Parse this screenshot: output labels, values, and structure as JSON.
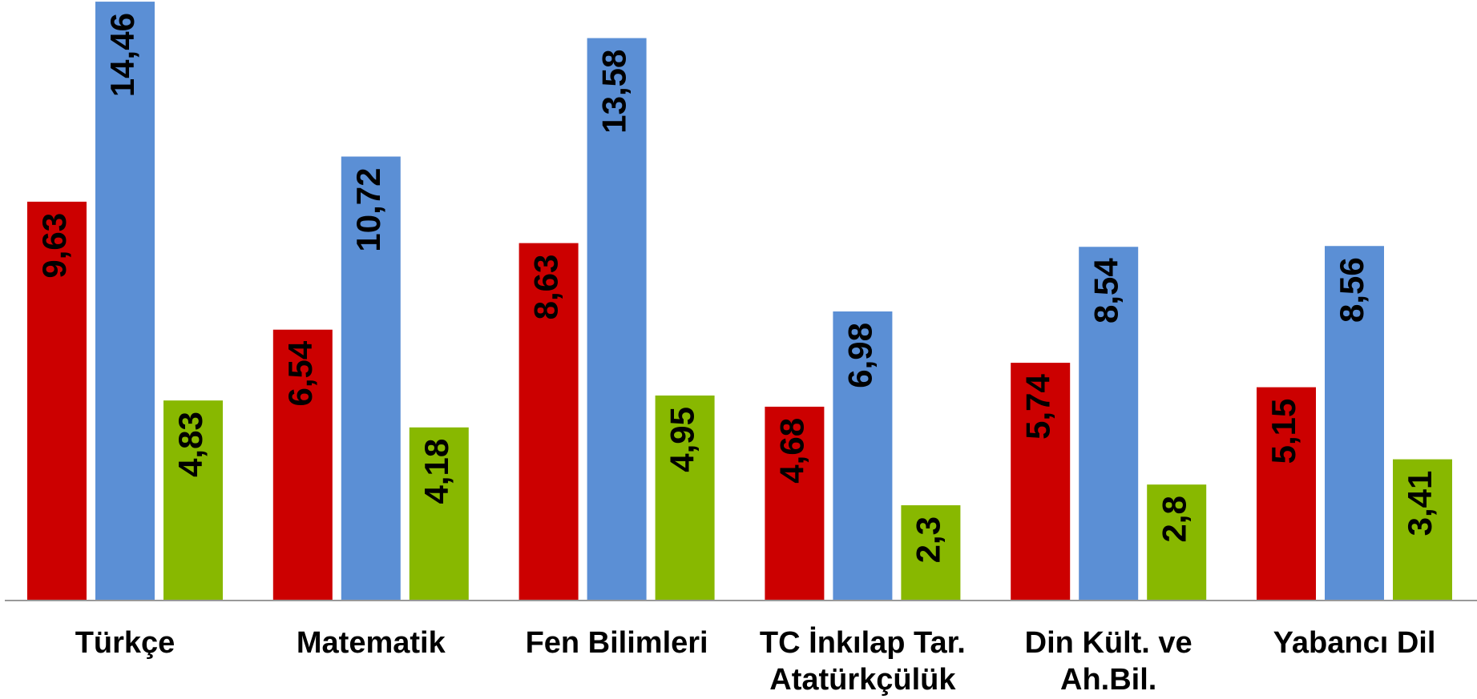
{
  "chart_data": {
    "type": "bar",
    "categories": [
      "Türkçe",
      "Matematik",
      "Fen Bilimleri",
      "TC İnkılap Tar.\nAtatürkçülük",
      "Din Kült. ve\nAh.Bil.",
      "Yabancı Dil"
    ],
    "series": [
      {
        "color": "#cc0000",
        "values": [
          9.63,
          6.54,
          8.63,
          4.68,
          5.74,
          5.15
        ],
        "value_labels": [
          "9,63",
          "6,54",
          "8,63",
          "4,68",
          "5,74",
          "5,15"
        ]
      },
      {
        "color": "#5b8fd5",
        "values": [
          14.46,
          10.72,
          13.58,
          6.98,
          8.54,
          8.56
        ],
        "value_labels": [
          "14,46",
          "10,72",
          "13,58",
          "6,98",
          "8,54",
          "8,56"
        ]
      },
      {
        "color": "#88b800",
        "values": [
          4.83,
          4.18,
          4.95,
          2.3,
          2.8,
          3.41
        ],
        "value_labels": [
          "4,83",
          "4,18",
          "4,95",
          "2,3",
          "2,8",
          "3,41"
        ]
      }
    ],
    "ylim": [
      0,
      14.5
    ]
  }
}
